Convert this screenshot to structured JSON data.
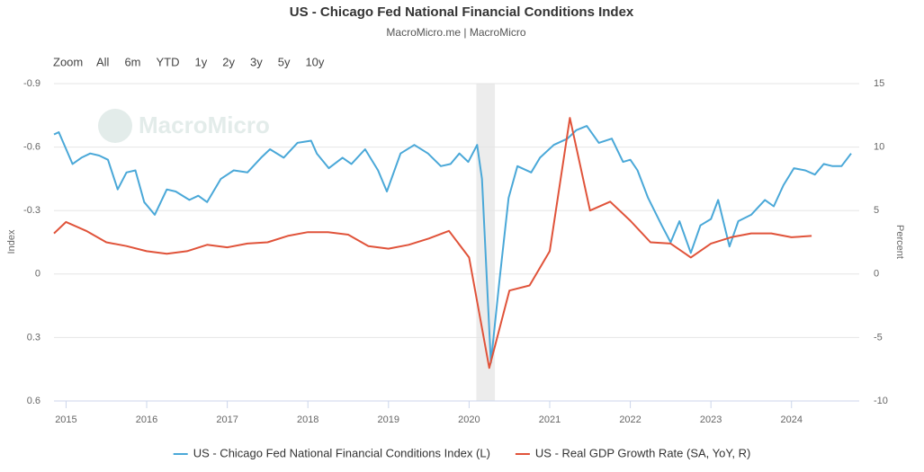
{
  "chart_data": {
    "type": "line",
    "title": "US - Chicago Fed National Financial Conditions Index",
    "subtitle": "MacroMicro.me | MacroMicro",
    "watermark": "MacroMicro",
    "range_selector": {
      "label": "Zoom",
      "buttons": [
        "All",
        "6m",
        "YTD",
        "1y",
        "2y",
        "3y",
        "5y",
        "10y"
      ]
    },
    "ylabel": "Index",
    "y2label": "Percent",
    "xlim": [
      2014.85,
      2024.84
    ],
    "xticks": [
      2015,
      2016,
      2017,
      2018,
      2019,
      2020,
      2021,
      2022,
      2023,
      2024
    ],
    "ylim": [
      0.6,
      -0.9
    ],
    "yticks": [
      -0.9,
      -0.6,
      -0.3,
      0,
      0.3,
      0.6
    ],
    "y2lim": [
      -10,
      15
    ],
    "y2ticks": [
      -10,
      -5,
      0,
      5,
      10,
      15
    ],
    "grid": true,
    "legend": "bottom",
    "shaded_ranges": [
      [
        2020.09,
        2020.32
      ]
    ],
    "series": [
      {
        "name": "US - Chicago Fed National Financial Conditions Index (L)",
        "color": "#4aa8d8",
        "x": [
          2014.85,
          2014.91,
          2015.08,
          2015.19,
          2015.3,
          2015.41,
          2015.52,
          2015.64,
          2015.75,
          2015.86,
          2015.97,
          2016.1,
          2016.25,
          2016.36,
          2016.53,
          2016.64,
          2016.75,
          2016.92,
          2017.08,
          2017.25,
          2017.42,
          2017.53,
          2017.7,
          2017.87,
          2018.04,
          2018.11,
          2018.26,
          2018.43,
          2018.54,
          2018.71,
          2018.87,
          2018.98,
          2019.15,
          2019.32,
          2019.49,
          2019.65,
          2019.77,
          2019.88,
          2019.99,
          2020.1,
          2020.16,
          2020.27,
          2020.38,
          2020.49,
          2020.6,
          2020.77,
          2020.88,
          2021.05,
          2021.22,
          2021.33,
          2021.46,
          2021.61,
          2021.77,
          2021.91,
          2022.0,
          2022.09,
          2022.22,
          2022.39,
          2022.5,
          2022.61,
          2022.75,
          2022.87,
          2023.0,
          2023.09,
          2023.23,
          2023.34,
          2023.5,
          2023.67,
          2023.78,
          2023.9,
          2024.03,
          2024.17,
          2024.29,
          2024.4,
          2024.51,
          2024.62,
          2024.74
        ],
        "values": [
          -0.66,
          -0.67,
          -0.52,
          -0.55,
          -0.57,
          -0.56,
          -0.54,
          -0.4,
          -0.48,
          -0.49,
          -0.34,
          -0.28,
          -0.4,
          -0.39,
          -0.35,
          -0.37,
          -0.34,
          -0.45,
          -0.49,
          -0.48,
          -0.55,
          -0.59,
          -0.55,
          -0.62,
          -0.63,
          -0.57,
          -0.5,
          -0.55,
          -0.52,
          -0.59,
          -0.49,
          -0.39,
          -0.57,
          -0.61,
          -0.57,
          -0.51,
          -0.52,
          -0.57,
          -0.53,
          -0.61,
          -0.45,
          0.42,
          0.02,
          -0.36,
          -0.51,
          -0.48,
          -0.55,
          -0.61,
          -0.64,
          -0.68,
          -0.7,
          -0.62,
          -0.64,
          -0.53,
          -0.54,
          -0.49,
          -0.36,
          -0.23,
          -0.15,
          -0.25,
          -0.1,
          -0.23,
          -0.26,
          -0.35,
          -0.13,
          -0.25,
          -0.28,
          -0.35,
          -0.32,
          -0.42,
          -0.5,
          -0.49,
          -0.47,
          -0.52,
          -0.51,
          -0.51,
          -0.57
        ]
      },
      {
        "name": "US - Real GDP Growth Rate (SA, YoY, R)",
        "color": "#e0533a",
        "axis": "y2",
        "x": [
          2014.85,
          2015.0,
          2015.25,
          2015.5,
          2015.75,
          2016.0,
          2016.25,
          2016.5,
          2016.75,
          2017.0,
          2017.25,
          2017.5,
          2017.75,
          2018.0,
          2018.25,
          2018.5,
          2018.75,
          2019.0,
          2019.25,
          2019.5,
          2019.75,
          2020.0,
          2020.25,
          2020.5,
          2020.75,
          2021.0,
          2021.25,
          2021.5,
          2021.75,
          2022.0,
          2022.25,
          2022.5,
          2022.75,
          2023.0,
          2023.25,
          2023.5,
          2023.75,
          2024.0,
          2024.25
        ],
        "values": [
          3.2,
          4.1,
          3.4,
          2.5,
          2.2,
          1.8,
          1.6,
          1.8,
          2.3,
          2.1,
          2.4,
          2.5,
          3.0,
          3.3,
          3.3,
          3.1,
          2.2,
          2.0,
          2.3,
          2.8,
          3.4,
          1.3,
          -7.4,
          -1.3,
          -0.9,
          1.8,
          12.3,
          5.0,
          5.7,
          4.2,
          2.5,
          2.4,
          1.3,
          2.4,
          2.9,
          3.2,
          3.2,
          2.9,
          3.0
        ]
      }
    ]
  }
}
